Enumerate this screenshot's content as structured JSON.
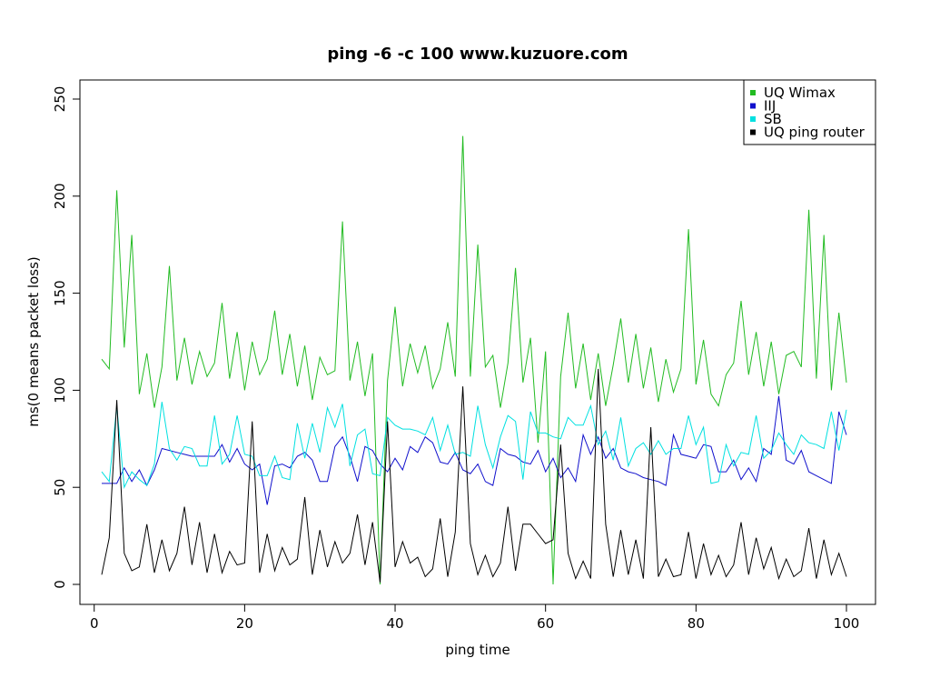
{
  "chart_data": {
    "type": "line",
    "title": "ping -6 -c 100 www.kuzuore.com",
    "xlabel": "ping time",
    "ylabel": "ms(0 means packet loss)",
    "xlim": [
      1,
      100
    ],
    "ylim": [
      0,
      250
    ],
    "xticks": [
      0,
      20,
      40,
      60,
      80,
      100
    ],
    "yticks": [
      0,
      50,
      100,
      150,
      200,
      250
    ],
    "grid": false,
    "legend_position": "top-right",
    "x": [
      1,
      2,
      3,
      4,
      5,
      6,
      7,
      8,
      9,
      10,
      11,
      12,
      13,
      14,
      15,
      16,
      17,
      18,
      19,
      20,
      21,
      22,
      23,
      24,
      25,
      26,
      27,
      28,
      29,
      30,
      31,
      32,
      33,
      34,
      35,
      36,
      37,
      38,
      39,
      40,
      41,
      42,
      43,
      44,
      45,
      46,
      47,
      48,
      49,
      50,
      51,
      52,
      53,
      54,
      55,
      56,
      57,
      58,
      59,
      60,
      61,
      62,
      63,
      64,
      65,
      66,
      67,
      68,
      69,
      70,
      71,
      72,
      73,
      74,
      75,
      76,
      77,
      78,
      79,
      80,
      81,
      82,
      83,
      84,
      85,
      86,
      87,
      88,
      89,
      90,
      91,
      92,
      93,
      94,
      95,
      96,
      97,
      98,
      99,
      100
    ],
    "series": [
      {
        "name": "UQ Wimax",
        "color": "#22bb22",
        "values": [
          116,
          111,
          203,
          122,
          180,
          98,
          119,
          91,
          112,
          164,
          105,
          127,
          103,
          120,
          107,
          114,
          145,
          106,
          130,
          100,
          125,
          108,
          116,
          141,
          108,
          129,
          102,
          123,
          95,
          117,
          108,
          110,
          187,
          105,
          125,
          97,
          119,
          0,
          105,
          143,
          102,
          124,
          109,
          123,
          101,
          111,
          135,
          107,
          231,
          107,
          175,
          112,
          118,
          91,
          114,
          163,
          104,
          127,
          73,
          120,
          0,
          107,
          140,
          101,
          124,
          95,
          119,
          92,
          113,
          137,
          104,
          129,
          101,
          122,
          94,
          116,
          99,
          111,
          183,
          103,
          126,
          98,
          92,
          108,
          114,
          146,
          108,
          130,
          102,
          125,
          98,
          118,
          120,
          112,
          193,
          106,
          180,
          100,
          140,
          104
        ]
      },
      {
        "name": "IIJ",
        "color": "#1010cc",
        "values": [
          52,
          52,
          52,
          60,
          53,
          59,
          51,
          59,
          70,
          69,
          68,
          67,
          66,
          66,
          66,
          66,
          72,
          63,
          70,
          62,
          59,
          62,
          41,
          61,
          62,
          60,
          66,
          68,
          64,
          53,
          53,
          71,
          76,
          66,
          53,
          71,
          69,
          62,
          58,
          65,
          59,
          71,
          68,
          76,
          73,
          63,
          62,
          68,
          59,
          57,
          62,
          53,
          51,
          70,
          67,
          66,
          63,
          62,
          69,
          58,
          65,
          55,
          60,
          53,
          77,
          67,
          76,
          65,
          70,
          60,
          58,
          57,
          55,
          54,
          53,
          51,
          77,
          67,
          66,
          65,
          72,
          71,
          58,
          58,
          64,
          54,
          60,
          53,
          70,
          67,
          97,
          64,
          62,
          69,
          58,
          56,
          54,
          52,
          89,
          77
        ]
      },
      {
        "name": "SB",
        "color": "#00e0e0",
        "values": [
          58,
          53,
          92,
          50,
          58,
          54,
          51,
          62,
          94,
          70,
          64,
          71,
          70,
          61,
          61,
          87,
          62,
          67,
          87,
          67,
          66,
          56,
          56,
          66,
          55,
          54,
          83,
          65,
          83,
          68,
          91,
          81,
          93,
          61,
          77,
          80,
          57,
          56,
          86,
          82,
          80,
          80,
          79,
          77,
          86,
          69,
          82,
          67,
          68,
          66,
          92,
          72,
          60,
          76,
          87,
          84,
          54,
          89,
          78,
          78,
          76,
          75,
          86,
          82,
          82,
          92,
          72,
          79,
          64,
          86,
          61,
          70,
          73,
          67,
          74,
          67,
          70,
          70,
          87,
          72,
          81,
          52,
          53,
          72,
          61,
          68,
          67,
          87,
          65,
          69,
          78,
          72,
          67,
          77,
          73,
          72,
          70,
          89,
          69,
          90
        ]
      },
      {
        "name": "UQ ping router",
        "color": "#000000",
        "values": [
          5,
          24,
          95,
          16,
          7,
          9,
          31,
          6,
          23,
          7,
          16,
          40,
          10,
          32,
          6,
          26,
          6,
          17,
          10,
          11,
          84,
          6,
          26,
          7,
          19,
          10,
          13,
          45,
          5,
          28,
          9,
          22,
          11,
          16,
          36,
          10,
          32,
          1,
          84,
          9,
          22,
          11,
          14,
          4,
          8,
          34,
          4,
          27,
          102,
          21,
          5,
          15,
          4,
          11,
          40,
          7,
          31,
          31,
          26,
          21,
          23,
          72,
          16,
          3,
          12,
          3,
          111,
          31,
          4,
          28,
          5,
          23,
          3,
          81,
          4,
          13,
          4,
          5,
          27,
          3,
          21,
          5,
          15,
          4,
          10,
          32,
          5,
          24,
          8,
          19,
          3,
          13,
          4,
          7,
          29,
          3,
          23,
          5,
          16,
          4
        ]
      }
    ]
  }
}
